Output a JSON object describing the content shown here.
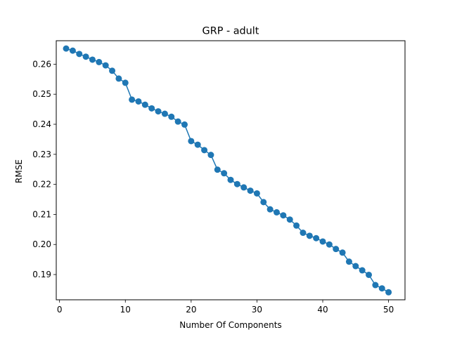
{
  "chart_data": {
    "type": "line",
    "title": "GRP - adult",
    "xlabel": "Number Of Components",
    "ylabel": "RMSE",
    "xlim": [
      -0.5,
      52.5
    ],
    "ylim": [
      0.1816,
      0.2678
    ],
    "xticks": [
      0,
      10,
      20,
      30,
      40,
      50
    ],
    "xtick_labels": [
      "0",
      "10",
      "20",
      "30",
      "40",
      "50"
    ],
    "yticks": [
      0.19,
      0.2,
      0.21,
      0.22,
      0.23,
      0.24,
      0.25,
      0.26
    ],
    "ytick_labels": [
      "0.19",
      "0.20",
      "0.21",
      "0.22",
      "0.23",
      "0.24",
      "0.25",
      "0.26"
    ],
    "grid": false,
    "series": [
      {
        "name": "RMSE",
        "color": "#1f77b4",
        "marker": "circle",
        "x": [
          1,
          2,
          3,
          4,
          5,
          6,
          7,
          8,
          9,
          10,
          11,
          12,
          13,
          14,
          15,
          16,
          17,
          18,
          19,
          20,
          21,
          22,
          23,
          24,
          25,
          26,
          27,
          28,
          29,
          30,
          31,
          32,
          33,
          34,
          35,
          36,
          37,
          38,
          39,
          40,
          41,
          42,
          43,
          44,
          45,
          46,
          47,
          48,
          49,
          50
        ],
        "values": [
          0.2652,
          0.2645,
          0.2634,
          0.2625,
          0.2615,
          0.2607,
          0.2596,
          0.2578,
          0.2552,
          0.2538,
          0.2482,
          0.2476,
          0.2465,
          0.2453,
          0.2443,
          0.2435,
          0.2425,
          0.2409,
          0.2399,
          0.2344,
          0.2332,
          0.2314,
          0.2298,
          0.2249,
          0.2237,
          0.2215,
          0.2201,
          0.219,
          0.2179,
          0.217,
          0.2141,
          0.2117,
          0.2107,
          0.2097,
          0.2083,
          0.2063,
          0.2039,
          0.2029,
          0.2021,
          0.201,
          0.2,
          0.1985,
          0.1973,
          0.1943,
          0.1928,
          0.1914,
          0.1899,
          0.1865,
          0.1854,
          0.1841
        ]
      }
    ]
  }
}
